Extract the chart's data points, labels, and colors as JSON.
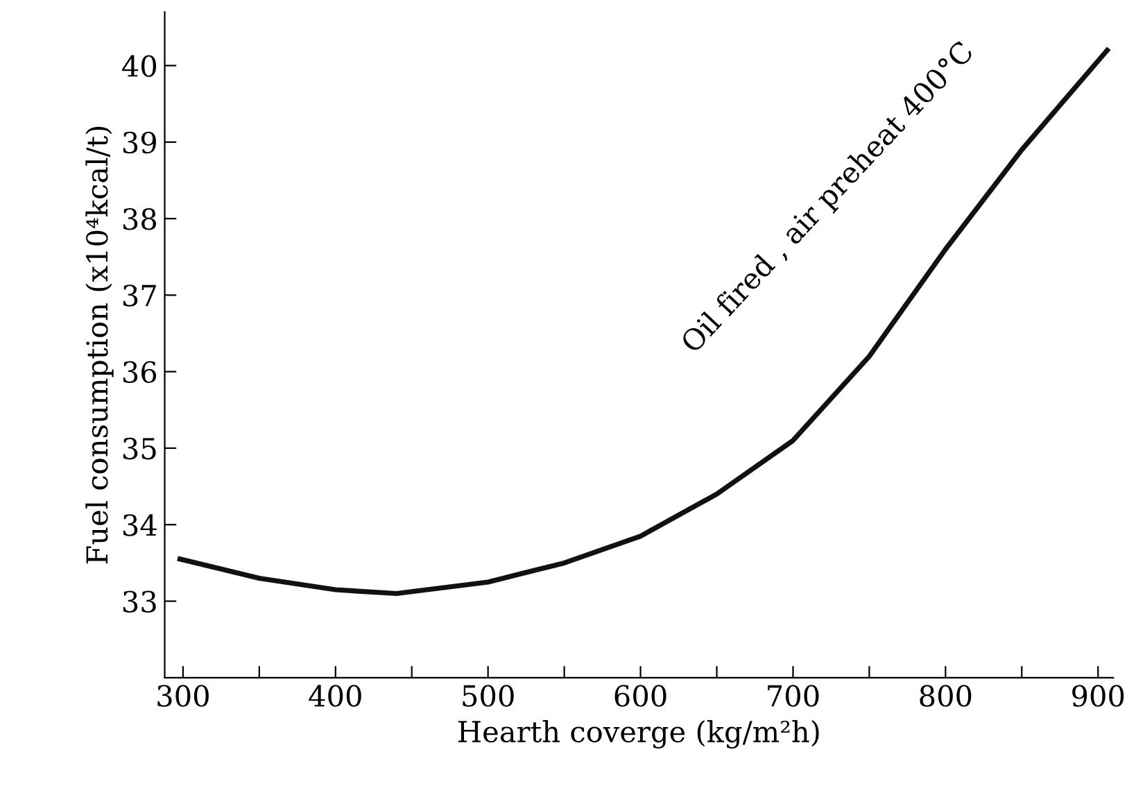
{
  "chart_data": {
    "type": "line",
    "xlabel": "Hearth coverge (kg/m²h)",
    "ylabel": "Fuel consumption (x10⁴kcal/t)",
    "x": [
      298,
      350,
      400,
      440,
      500,
      550,
      600,
      650,
      700,
      750,
      800,
      850,
      906
    ],
    "series": [
      {
        "color": "#111111",
        "values": [
          33.55,
          33.3,
          33.15,
          33.1,
          33.25,
          33.5,
          33.85,
          34.4,
          35.1,
          36.2,
          37.6,
          38.9,
          40.2
        ]
      }
    ],
    "annotations": [
      "Oil fired , air preheat 400°C"
    ],
    "xlim": [
      288,
      910
    ],
    "ylim": [
      32,
      40.7
    ],
    "xticks": [
      300,
      {
        "value": 350,
        "label": null
      },
      400,
      {
        "value": 450,
        "label": null
      },
      500,
      {
        "value": 550,
        "label": null
      },
      600,
      {
        "value": 650,
        "label": null
      },
      700,
      {
        "value": 750,
        "label": null
      },
      800,
      {
        "value": 850,
        "label": null
      },
      900
    ],
    "yticks": [
      33,
      34,
      35,
      36,
      37,
      38,
      39,
      40
    ],
    "grid": false,
    "legend": false,
    "marker": "none",
    "line_style": "solid"
  }
}
